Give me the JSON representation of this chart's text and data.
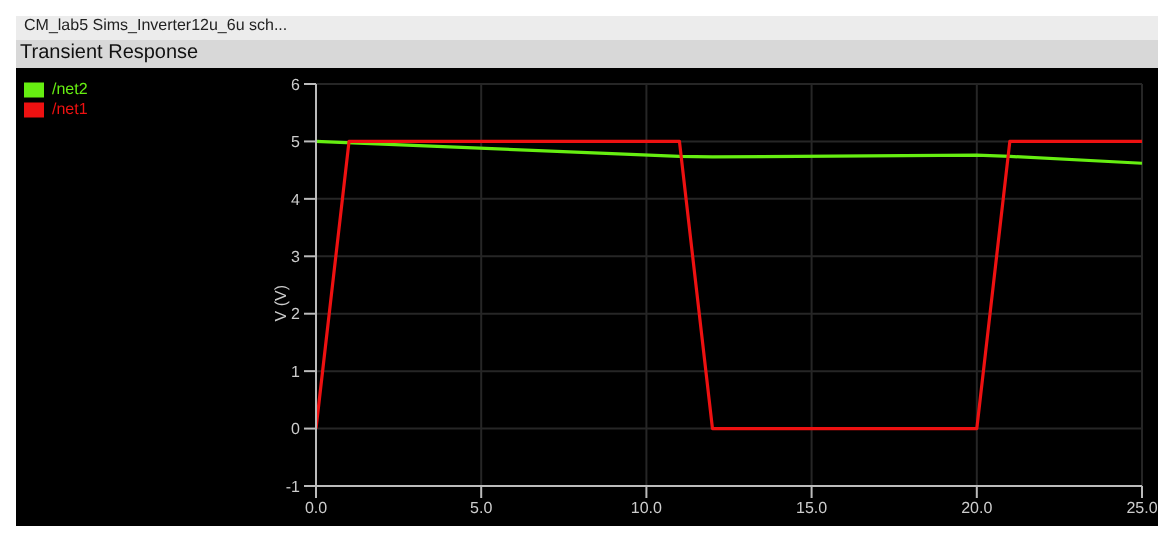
{
  "chart_data": {
    "type": "line",
    "title": "Transient Response",
    "annotations": [
      "CM_lab5 Sims_Inverter12u_6u sch..."
    ],
    "ylabel": "V (V)",
    "xlim": [
      0,
      25
    ],
    "xticks": [
      {
        "value": 0,
        "label": "0.0"
      },
      {
        "value": 5,
        "label": "5.0"
      },
      {
        "value": 10,
        "label": "10.0"
      },
      {
        "value": 15,
        "label": "15.0"
      },
      {
        "value": 20,
        "label": "20.0"
      },
      {
        "value": 25,
        "label": "25.0"
      }
    ],
    "ylim": [
      -1,
      6
    ],
    "yticks": [
      -1,
      0,
      1,
      2,
      3,
      4,
      5,
      6
    ],
    "grid": true,
    "legend": "left",
    "line_style": "solid",
    "marker": "none",
    "series": [
      {
        "name": "/net2",
        "color": "#66ee11",
        "x": [
          0,
          11,
          12,
          20,
          21,
          25
        ],
        "values": [
          5.0,
          4.74,
          4.73,
          4.76,
          4.74,
          4.62
        ]
      },
      {
        "name": "/net1",
        "color": "#ee1111",
        "x": [
          0,
          1,
          11,
          12,
          20,
          21,
          25
        ],
        "values": [
          0,
          5,
          5,
          0,
          0,
          5,
          5
        ]
      }
    ]
  }
}
